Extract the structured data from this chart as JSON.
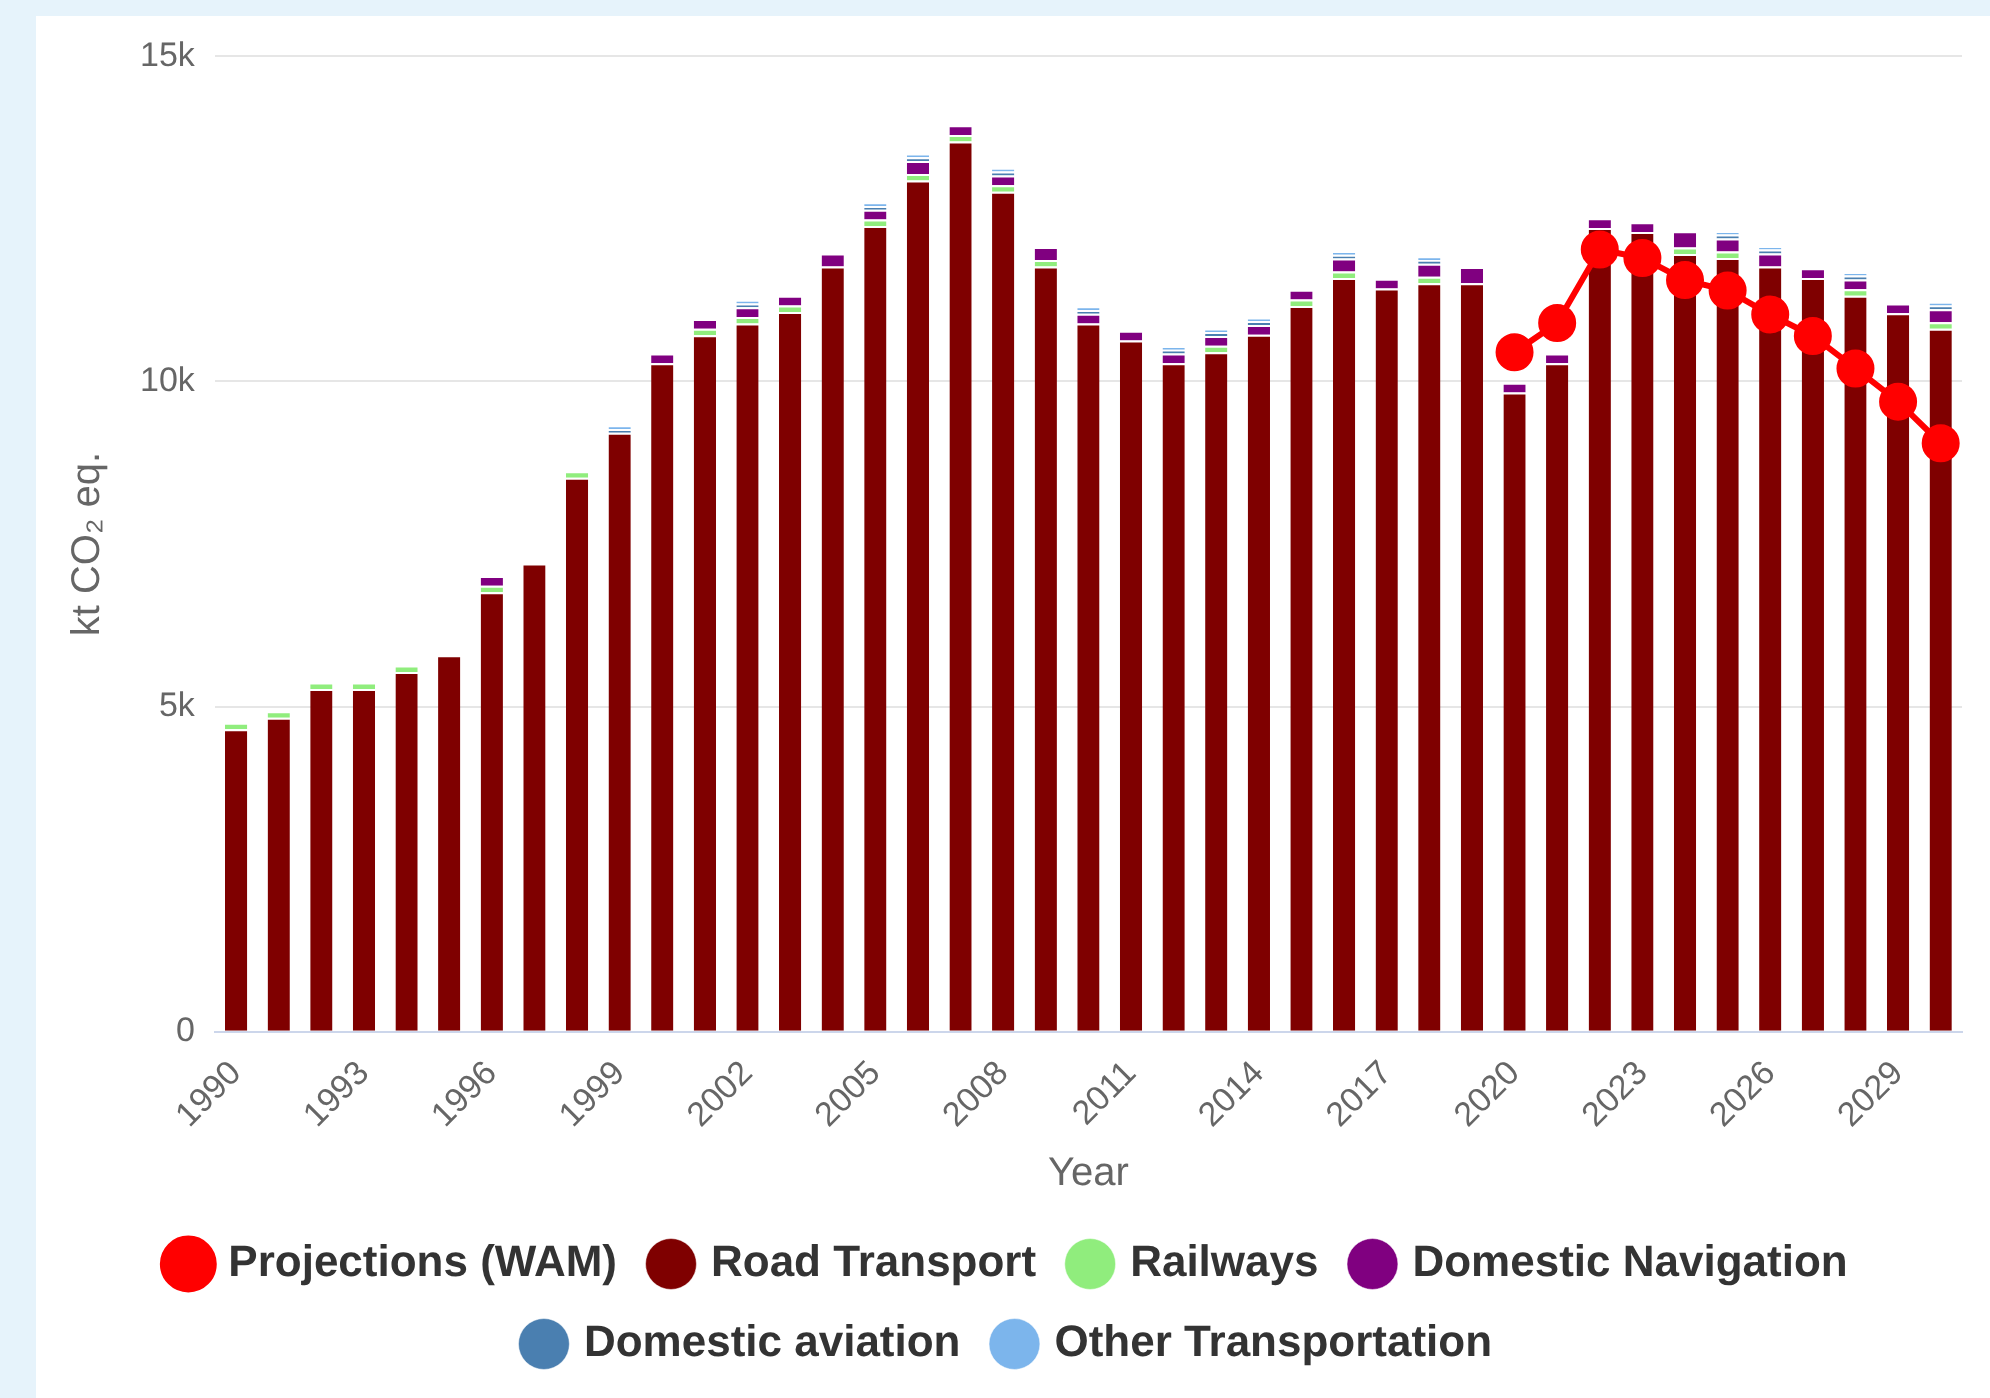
{
  "chart_data": {
    "type": "bar",
    "stacked": true,
    "xlabel": "Year",
    "ylabel": "kt CO₂ eq.",
    "grid": "y",
    "legend": "bottom",
    "marker": "circle",
    "categories": [
      "1990",
      null,
      null,
      "1993",
      null,
      null,
      "1996",
      null,
      null,
      "1999",
      null,
      null,
      "2002",
      null,
      null,
      "2005",
      null,
      null,
      "2008",
      null,
      null,
      "2011",
      null,
      null,
      "2014",
      null,
      null,
      "2017",
      null,
      null,
      "2020",
      null,
      null,
      "2023",
      null,
      null,
      "2026",
      null,
      null,
      "2029",
      null
    ],
    "ylim": [
      0,
      15000
    ],
    "yticks": [
      0,
      {
        "value": 5000,
        "label": "5k"
      },
      {
        "value": 10000,
        "label": "10k"
      },
      {
        "value": 15000,
        "label": "15k"
      }
    ],
    "series": [
      {
        "name": "Road Transport",
        "color": "#7f0000",
        "values": [
          4650,
          4830,
          5270,
          5270,
          5530,
          5790,
          6760,
          7200,
          8520,
          9210,
          10280,
          10710,
          10890,
          11070,
          11770,
          12390,
          13090,
          13690,
          12920,
          11770,
          10890,
          10630,
          10280,
          10450,
          10720,
          11160,
          11590,
          11430,
          11510,
          11510,
          9830,
          10280,
          12360,
          12300,
          11960,
          11900,
          11770,
          11590,
          11320,
          11050,
          10810
        ]
      },
      {
        "name": "Railways",
        "color": "#90ed7d",
        "values": [
          100,
          100,
          100,
          100,
          100,
          0,
          100,
          0,
          100,
          0,
          0,
          100,
          100,
          100,
          0,
          100,
          100,
          100,
          100,
          100,
          0,
          0,
          0,
          100,
          0,
          100,
          100,
          0,
          100,
          0,
          0,
          0,
          0,
          0,
          100,
          100,
          0,
          0,
          100,
          0,
          100
        ]
      },
      {
        "name": "Domestic Navigation",
        "color": "#800080",
        "values": [
          0,
          0,
          0,
          0,
          0,
          0,
          150,
          0,
          0,
          0,
          150,
          150,
          150,
          150,
          200,
          150,
          200,
          150,
          150,
          200,
          150,
          150,
          150,
          150,
          150,
          150,
          200,
          150,
          200,
          250,
          150,
          150,
          150,
          150,
          250,
          200,
          200,
          150,
          150,
          150,
          200
        ]
      },
      {
        "name": "Domestic aviation",
        "color": "#4a7fb0",
        "values": [
          0,
          0,
          0,
          0,
          0,
          0,
          0,
          0,
          0,
          60,
          0,
          0,
          60,
          0,
          0,
          60,
          60,
          0,
          60,
          0,
          60,
          0,
          60,
          60,
          60,
          0,
          60,
          0,
          60,
          0,
          0,
          0,
          0,
          0,
          0,
          60,
          60,
          0,
          60,
          0,
          60
        ]
      },
      {
        "name": "Other Transportation",
        "color": "#7cb5ec",
        "values": [
          0,
          0,
          0,
          0,
          0,
          0,
          0,
          0,
          0,
          50,
          0,
          0,
          50,
          0,
          0,
          50,
          50,
          0,
          50,
          0,
          50,
          0,
          50,
          50,
          50,
          0,
          50,
          0,
          50,
          0,
          0,
          0,
          0,
          0,
          0,
          50,
          50,
          0,
          50,
          0,
          50
        ]
      },
      {
        "name": "Projections (WAM)",
        "type": "line",
        "color": "#ff0000",
        "values": [
          null,
          null,
          null,
          null,
          null,
          null,
          null,
          null,
          null,
          null,
          null,
          null,
          null,
          null,
          null,
          null,
          null,
          null,
          null,
          null,
          null,
          null,
          null,
          null,
          null,
          null,
          null,
          null,
          null,
          null,
          10450,
          10900,
          12030,
          11900,
          11560,
          11400,
          11030,
          10700,
          10200,
          9690,
          9050
        ]
      }
    ]
  }
}
